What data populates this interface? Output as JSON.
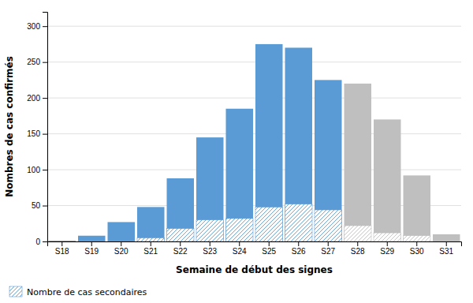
{
  "chart_data": {
    "type": "bar",
    "categories": [
      "S18",
      "S19",
      "S20",
      "S21",
      "S22",
      "S23",
      "S24",
      "S25",
      "S26",
      "S27",
      "S28",
      "S29",
      "S30",
      "S31"
    ],
    "series": [
      {
        "values": [
          1,
          8,
          27,
          48,
          88,
          145,
          185,
          275,
          270,
          225,
          220,
          170,
          92,
          10
        ],
        "colors": [
          "#5B9BD5",
          "#5B9BD5",
          "#5B9BD5",
          "#5B9BD5",
          "#5B9BD5",
          "#5B9BD5",
          "#5B9BD5",
          "#5B9BD5",
          "#5B9BD5",
          "#5B9BD5",
          "#BFBFBF",
          "#BFBFBF",
          "#BFBFBF",
          "#BFBFBF"
        ]
      },
      {
        "name": "Nombre de cas secondaires",
        "values": [
          0,
          0,
          0,
          5,
          18,
          30,
          32,
          48,
          52,
          44,
          22,
          12,
          8,
          0
        ],
        "colors": [
          "#5B9BD5",
          "#5B9BD5",
          "#5B9BD5",
          "#5B9BD5",
          "#5B9BD5",
          "#5B9BD5",
          "#5B9BD5",
          "#5B9BD5",
          "#5B9BD5",
          "#5B9BD5",
          "#BFBFBF",
          "#BFBFBF",
          "#BFBFBF",
          "#BFBFBF"
        ]
      }
    ],
    "xlabel": "Semaine de début des signes",
    "ylabel": "Nombres de cas confirmés",
    "ylim": [
      0,
      320
    ],
    "yticks": [
      0,
      50,
      100,
      150,
      200,
      250,
      300
    ],
    "grid": true,
    "legend": "lower left"
  }
}
